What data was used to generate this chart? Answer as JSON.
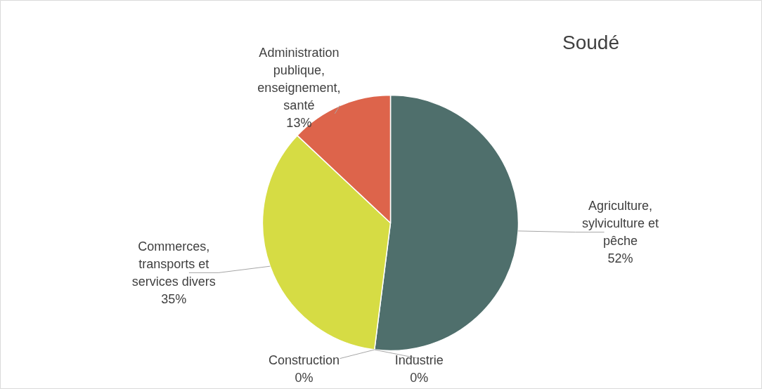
{
  "chart_data": {
    "type": "pie",
    "title": "Soudé",
    "categories": [
      "Agriculture, sylviculture et pêche",
      "Industrie",
      "Construction",
      "Commerces, transports et services divers",
      "Administration publique, enseignement, santé"
    ],
    "values": [
      52,
      0,
      0,
      35,
      13
    ],
    "value_labels": [
      "52%",
      "0%",
      "0%",
      "35%",
      "13%"
    ],
    "colors": [
      "#4f6f6c",
      "#8a8f5a",
      "#b8b8b8",
      "#d6dc44",
      "#dd644b"
    ]
  }
}
